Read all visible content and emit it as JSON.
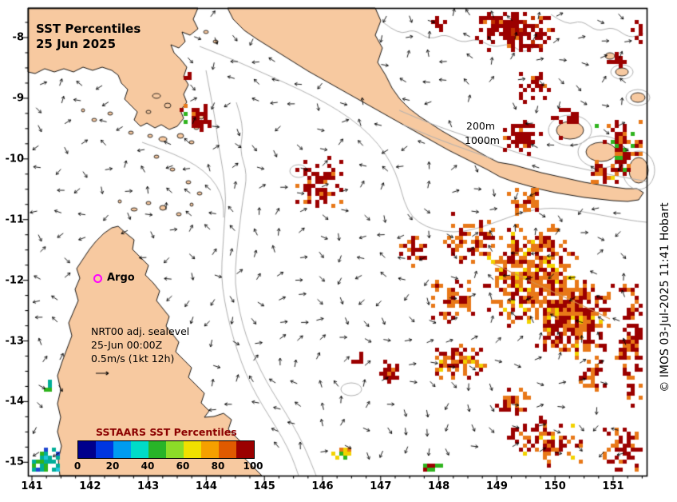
{
  "title": {
    "line1": "SST Percentiles",
    "line2": "25 Jun 2025"
  },
  "credit": "© IMOS 03-Jul-2025 11:41 Hobart",
  "annotations": {
    "argo_label": "Argo",
    "argo_color": "#ff00ff",
    "nrt_line1": "NRT00 adj. sealevel",
    "nrt_line2": "25-Jun 00:00Z",
    "nrt_line3": "0.5m/s (1kt 12h)",
    "depth_label_1": "200m",
    "depth_label_2": "1000m"
  },
  "axes": {
    "x_ticks": [
      "141",
      "142",
      "143",
      "144",
      "145",
      "146",
      "147",
      "148",
      "149",
      "150",
      "151"
    ],
    "y_ticks": [
      "-8",
      "-9",
      "-10",
      "-11",
      "-12",
      "-13",
      "-14",
      "-15"
    ]
  },
  "colorbar": {
    "title": "SSTAARS SST Percentiles",
    "title_color": "#8b0000",
    "labels": [
      "0",
      "20",
      "40",
      "60",
      "80",
      "100"
    ],
    "colors": [
      "#00008c",
      "#0036e0",
      "#009cf0",
      "#00dcc8",
      "#28b428",
      "#8cdc28",
      "#f0e000",
      "#f5a000",
      "#e05a00",
      "#9b0000"
    ]
  },
  "colors": {
    "land": "#f7c9a0",
    "coast": "#000000",
    "ocean": "#ffffff",
    "contour": "#b0b0b0",
    "frame": "#000000",
    "arrow": "#000000",
    "warm_line": "#d49050"
  },
  "palette": {
    "darkred": "#9b0000",
    "red": "#c03000",
    "orange": "#e87818",
    "yellow": "#f2d200",
    "green": "#2fb41e",
    "cyan": "#1fc4dc",
    "teal": "#00ae98",
    "blue": "#2048d0"
  },
  "chart_data": {
    "type": "heatmap",
    "description": "SSTAARS sea-surface-temperature percentile anomalies over the Coral Sea / Gulf of Papua with NRT00 adjusted sea-level current vectors, bathymetry contours (200m, 1000m) and an Argo float position",
    "x_range": [
      140.93,
      151.58
    ],
    "y_range": [
      -15.22,
      -7.51
    ],
    "x_ticks": [
      141,
      142,
      143,
      144,
      145,
      146,
      147,
      148,
      149,
      150,
      151
    ],
    "y_ticks": [
      -8,
      -9,
      -10,
      -11,
      -12,
      -13,
      -14,
      -15
    ],
    "colorbar_values": [
      0,
      20,
      40,
      60,
      80,
      100
    ],
    "bathymetry_contours_m": [
      200,
      1000
    ],
    "argo_float": {
      "lon": 142.13,
      "lat": -11.92
    },
    "current_vector_scale": "0.5m/s (1kt 12h)",
    "sst_percentile_clusters": [
      {
        "lon": 149.27,
        "lat": -7.87,
        "w_deg": 1.45,
        "h_deg": 0.72,
        "density": 0.55,
        "colors": {
          "darkred": 0.75,
          "red": 0.15,
          "orange": 0.1
        }
      },
      {
        "lon": 147.94,
        "lat": -7.75,
        "w_deg": 0.4,
        "h_deg": 0.3,
        "density": 0.3,
        "colors": {
          "darkred": 1
        }
      },
      {
        "lon": 151.44,
        "lat": -7.84,
        "w_deg": 0.35,
        "h_deg": 0.45,
        "density": 0.35,
        "colors": {
          "darkred": 1
        }
      },
      {
        "lon": 151.05,
        "lat": -8.33,
        "w_deg": 0.45,
        "h_deg": 0.3,
        "density": 0.4,
        "colors": {
          "darkred": 0.8,
          "orange": 0.2
        }
      },
      {
        "lon": 149.63,
        "lat": -8.76,
        "w_deg": 0.6,
        "h_deg": 0.6,
        "density": 0.25,
        "colors": {
          "darkred": 0.9,
          "orange": 0.1
        }
      },
      {
        "lon": 150.2,
        "lat": -9.38,
        "w_deg": 0.55,
        "h_deg": 0.6,
        "density": 0.5,
        "colors": {
          "darkred": 0.85,
          "orange": 0.15
        }
      },
      {
        "lon": 151.03,
        "lat": -9.91,
        "w_deg": 1.1,
        "h_deg": 1.1,
        "density": 0.35,
        "colors": {
          "darkred": 0.6,
          "orange": 0.25,
          "yellow": 0.05,
          "green": 0.1
        }
      },
      {
        "lon": 149.35,
        "lat": -9.62,
        "w_deg": 0.75,
        "h_deg": 0.55,
        "density": 0.45,
        "colors": {
          "darkred": 0.85,
          "orange": 0.15
        }
      },
      {
        "lon": 143.2,
        "lat": -8.54,
        "w_deg": 0.5,
        "h_deg": 0.3,
        "density": 0.45,
        "colors": {
          "green": 0.3,
          "cyan": 0.25,
          "yellow": 0.25,
          "blue": 0.1,
          "orange": 0.1
        }
      },
      {
        "lon": 143.64,
        "lat": -8.62,
        "w_deg": 0.2,
        "h_deg": 0.2,
        "density": 0.5,
        "colors": {
          "darkred": 1
        }
      },
      {
        "lon": 143.27,
        "lat": -9.33,
        "w_deg": 0.35,
        "h_deg": 0.3,
        "density": 0.4,
        "colors": {
          "yellow": 0.4,
          "green": 0.3,
          "cyan": 0.3
        }
      },
      {
        "lon": 143.82,
        "lat": -9.29,
        "w_deg": 0.55,
        "h_deg": 0.55,
        "density": 0.5,
        "colors": {
          "darkred": 0.8,
          "orange": 0.1,
          "green": 0.1
        }
      },
      {
        "lon": 145.92,
        "lat": -10.38,
        "w_deg": 0.95,
        "h_deg": 0.9,
        "density": 0.3,
        "colors": {
          "darkred": 0.85,
          "orange": 0.15
        }
      },
      {
        "lon": 149.5,
        "lat": -10.67,
        "w_deg": 0.7,
        "h_deg": 0.45,
        "density": 0.35,
        "colors": {
          "orange": 0.6,
          "darkred": 0.4
        }
      },
      {
        "lon": 149.6,
        "lat": -11.9,
        "w_deg": 1.7,
        "h_deg": 1.7,
        "density": 0.5,
        "colors": {
          "orange": 0.55,
          "darkred": 0.35,
          "yellow": 0.1
        }
      },
      {
        "lon": 150.3,
        "lat": -12.6,
        "w_deg": 1.4,
        "h_deg": 1.4,
        "density": 0.55,
        "colors": {
          "orange": 0.5,
          "darkred": 0.45,
          "yellow": 0.05
        }
      },
      {
        "lon": 148.5,
        "lat": -11.29,
        "w_deg": 0.9,
        "h_deg": 0.8,
        "density": 0.3,
        "colors": {
          "orange": 0.5,
          "darkred": 0.5
        }
      },
      {
        "lon": 147.5,
        "lat": -11.5,
        "w_deg": 0.6,
        "h_deg": 0.6,
        "density": 0.25,
        "colors": {
          "darkred": 0.7,
          "orange": 0.3
        }
      },
      {
        "lon": 148.2,
        "lat": -12.3,
        "w_deg": 0.8,
        "h_deg": 0.8,
        "density": 0.3,
        "colors": {
          "orange": 0.6,
          "darkred": 0.4
        }
      },
      {
        "lon": 148.3,
        "lat": -13.3,
        "w_deg": 1.05,
        "h_deg": 0.65,
        "density": 0.45,
        "colors": {
          "orange": 0.45,
          "darkred": 0.45,
          "yellow": 0.1
        }
      },
      {
        "lon": 147.1,
        "lat": -13.49,
        "w_deg": 0.55,
        "h_deg": 0.45,
        "density": 0.35,
        "colors": {
          "darkred": 0.8,
          "orange": 0.2
        }
      },
      {
        "lon": 146.56,
        "lat": -13.27,
        "w_deg": 0.2,
        "h_deg": 0.2,
        "density": 0.5,
        "colors": {
          "darkred": 1
        }
      },
      {
        "lon": 149.24,
        "lat": -13.97,
        "w_deg": 0.6,
        "h_deg": 0.5,
        "density": 0.3,
        "colors": {
          "orange": 0.5,
          "darkred": 0.5
        }
      },
      {
        "lon": 150.6,
        "lat": -13.57,
        "w_deg": 0.6,
        "h_deg": 0.6,
        "density": 0.3,
        "colors": {
          "darkred": 0.6,
          "orange": 0.4
        }
      },
      {
        "lon": 151.3,
        "lat": -13.0,
        "w_deg": 0.55,
        "h_deg": 2.3,
        "density": 0.28,
        "colors": {
          "darkred": 0.7,
          "orange": 0.3
        }
      },
      {
        "lon": 149.8,
        "lat": -14.6,
        "w_deg": 1.5,
        "h_deg": 0.85,
        "density": 0.22,
        "colors": {
          "darkred": 0.6,
          "orange": 0.35,
          "yellow": 0.05
        }
      },
      {
        "lon": 151.16,
        "lat": -14.76,
        "w_deg": 0.8,
        "h_deg": 0.8,
        "density": 0.3,
        "colors": {
          "darkred": 0.7,
          "orange": 0.3
        }
      },
      {
        "lon": 146.3,
        "lat": -14.84,
        "w_deg": 0.3,
        "h_deg": 0.25,
        "density": 0.5,
        "colors": {
          "yellow": 0.5,
          "green": 0.3,
          "orange": 0.2
        }
      },
      {
        "lon": 147.87,
        "lat": -15.07,
        "w_deg": 0.45,
        "h_deg": 0.3,
        "density": 0.4,
        "colors": {
          "darkred": 0.5,
          "yellow": 0.2,
          "green": 0.3
        }
      },
      {
        "lon": 141.2,
        "lat": -15.0,
        "w_deg": 0.6,
        "h_deg": 0.6,
        "density": 0.45,
        "colors": {
          "teal": 0.4,
          "cyan": 0.3,
          "green": 0.2,
          "blue": 0.1
        }
      },
      {
        "lon": 141.25,
        "lat": -13.74,
        "w_deg": 0.2,
        "h_deg": 0.25,
        "density": 0.5,
        "colors": {
          "teal": 0.6,
          "green": 0.4
        }
      }
    ]
  }
}
